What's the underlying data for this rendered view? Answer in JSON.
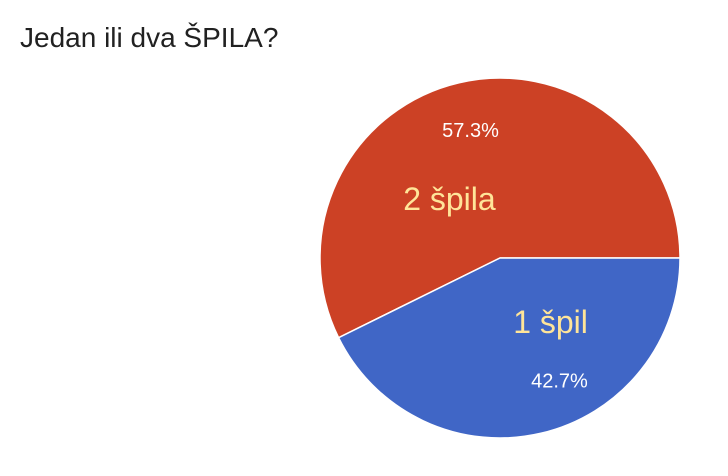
{
  "chart_data": {
    "type": "pie",
    "title": "Jedan ili dva ŠPILA?",
    "slices": [
      {
        "label": "2 špila",
        "value": 57.3,
        "display": "57.3%",
        "color": "#cc4125",
        "label_color": "#ffe599"
      },
      {
        "label": "1 špil",
        "value": 42.7,
        "display": "42.7%",
        "color": "#4066c6",
        "label_color": "#ffe599"
      }
    ],
    "start_angle_deg": 0,
    "direction": "counterclockwise",
    "legend": "none"
  }
}
